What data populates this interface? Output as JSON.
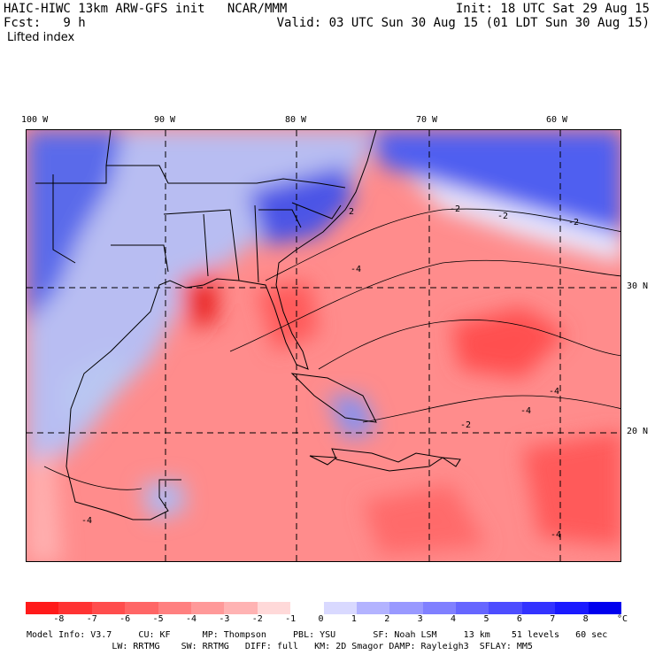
{
  "header": {
    "left_line1": "HAIC-HIWC 13km ARW-GFS init   NCAR/MMM",
    "left_line2": "Fcst:   9 h",
    "left_line3": "Lifted index",
    "right_line1": "Init: 18 UTC Sat 29 Aug 15",
    "right_line2": "Valid: 03 UTC Sun 30 Aug 15 (01 LDT Sun 30 Aug 15)"
  },
  "map": {
    "lon_labels": [
      "100 W",
      "90 W",
      "80 W",
      "70 W",
      "60 W"
    ],
    "lat_labels": [
      "30 N",
      "20 N"
    ],
    "contour_labels": [
      "-2",
      "-2",
      "-2",
      "-4",
      "-4",
      "-4",
      "-2",
      "-4",
      "-4",
      "2"
    ]
  },
  "colorbar": {
    "colors": [
      "#ff1a1a",
      "#ff3333",
      "#ff4d4d",
      "#ff6666",
      "#ff8080",
      "#ff9999",
      "#ffb3b3",
      "#ffd9d9",
      "#ffffff",
      "#d9d9ff",
      "#b3b3ff",
      "#9999ff",
      "#8080ff",
      "#6666ff",
      "#4d4dff",
      "#3333ff",
      "#1a1aff"
    ],
    "ticks": [
      "-8",
      "-7",
      "-6",
      "-5",
      "-4",
      "-3",
      "-2",
      "-1",
      "0",
      "1",
      "2",
      "3",
      "4",
      "5",
      "6",
      "7",
      "8"
    ],
    "unit": "°C"
  },
  "footer": {
    "line1": "Model Info: V3.7     CU: KF      MP: Thompson     PBL: YSU       SF: Noah LSM     13 km    51 levels   60 sec",
    "line2": "                LW: RRTMG    SW: RRTMG   DIFF: full   KM: 2D Smagor DAMP: Rayleigh3  SFLAY: MM5"
  }
}
